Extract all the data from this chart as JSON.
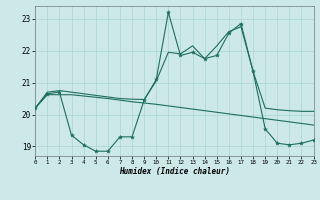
{
  "xlabel": "Humidex (Indice chaleur)",
  "bg_color": "#cce8e8",
  "grid_color": "#aad4d4",
  "line_color": "#1e6e5e",
  "xmin": 0,
  "xmax": 23,
  "ymin": 18.7,
  "ymax": 23.4,
  "yticks": [
    19,
    20,
    21,
    22,
    23
  ],
  "xticks": [
    0,
    1,
    2,
    3,
    4,
    5,
    6,
    7,
    8,
    9,
    10,
    11,
    12,
    13,
    14,
    15,
    16,
    17,
    18,
    19,
    20,
    21,
    22,
    23
  ],
  "line1_x": [
    0,
    1,
    2,
    3,
    4,
    5,
    6,
    7,
    8,
    9,
    10,
    11,
    12,
    13,
    14,
    15,
    16,
    17,
    18,
    19,
    20,
    21,
    22,
    23
  ],
  "line1_y": [
    20.2,
    20.7,
    20.75,
    20.7,
    20.65,
    20.6,
    20.55,
    20.5,
    20.48,
    20.47,
    21.05,
    21.95,
    21.9,
    22.15,
    21.75,
    22.15,
    22.6,
    22.75,
    21.35,
    20.2,
    20.15,
    20.12,
    20.1,
    20.1
  ],
  "line2_x": [
    0,
    1,
    2,
    3,
    4,
    5,
    6,
    7,
    8,
    9,
    10,
    11,
    12,
    13,
    14,
    15,
    16,
    17,
    18,
    19,
    20,
    21,
    22,
    23
  ],
  "line2_y": [
    20.2,
    20.65,
    20.7,
    19.35,
    19.05,
    18.85,
    18.85,
    19.3,
    19.3,
    20.45,
    21.1,
    23.2,
    21.85,
    21.95,
    21.75,
    21.85,
    22.55,
    22.85,
    21.35,
    19.55,
    19.1,
    19.05,
    19.1,
    19.2
  ],
  "line3_x": [
    0,
    1,
    2,
    3,
    4,
    5,
    6,
    7,
    8,
    9,
    10,
    11,
    12,
    13,
    14,
    15,
    16,
    17,
    18,
    19,
    20,
    21,
    22,
    23
  ],
  "line3_y": [
    20.2,
    20.62,
    20.62,
    20.62,
    20.58,
    20.54,
    20.5,
    20.45,
    20.4,
    20.36,
    20.32,
    20.27,
    20.22,
    20.17,
    20.12,
    20.07,
    20.02,
    19.97,
    19.92,
    19.87,
    19.82,
    19.77,
    19.72,
    19.67
  ]
}
